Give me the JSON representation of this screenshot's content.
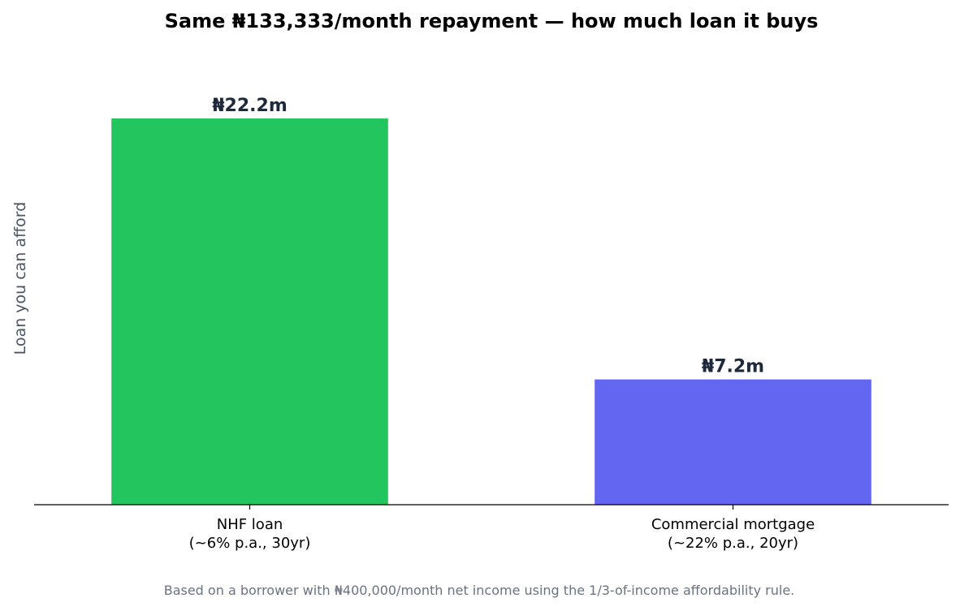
{
  "chart_data": {
    "type": "bar",
    "title": "Same ₦133,333/month repayment — how much loan it buys",
    "ylabel": "Loan you can afford",
    "xlabel": "",
    "categories": [
      [
        "NHF loan",
        "(~6% p.a., 30yr)"
      ],
      [
        "Commercial mortgage",
        "(~22% p.a., 20yr)"
      ]
    ],
    "values": [
      22.2,
      7.2
    ],
    "value_labels": [
      "₦22.2m",
      "₦7.2m"
    ],
    "colors": [
      "#22c55e",
      "#6366f1"
    ],
    "ylim": [
      0,
      22.2
    ],
    "grid": false,
    "y_ticks_visible": false
  },
  "footnote": "Based on a borrower with ₦400,000/month net income using the 1/3-of-income affordability rule."
}
